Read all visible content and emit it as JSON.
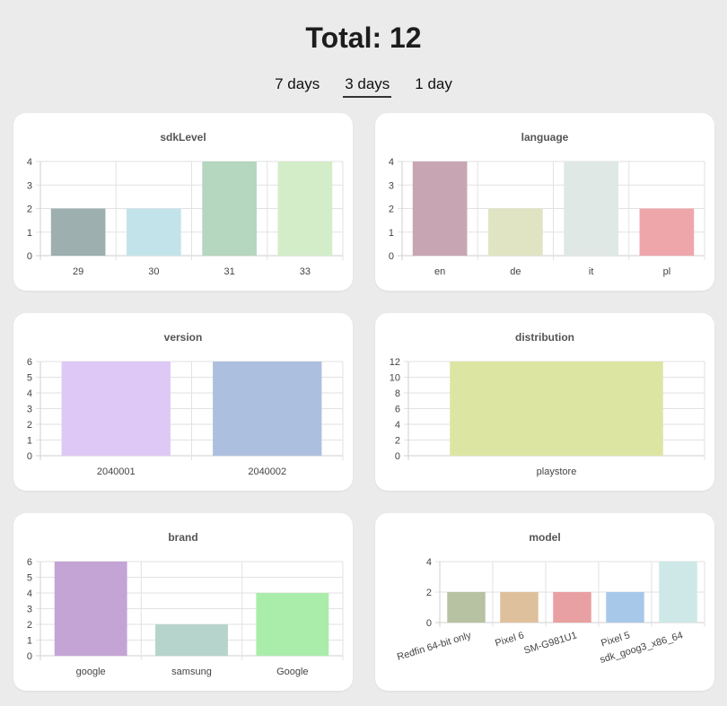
{
  "header": {
    "title": "Total: 12",
    "tabs": [
      {
        "label": "7 days",
        "active": false
      },
      {
        "label": "3 days",
        "active": true
      },
      {
        "label": "1 day",
        "active": false
      }
    ]
  },
  "chart_data": [
    {
      "id": "sdkLevel",
      "type": "bar",
      "title": "sdkLevel",
      "categories": [
        "29",
        "30",
        "31",
        "33"
      ],
      "values": [
        2,
        2,
        4,
        4
      ],
      "ylim": [
        0,
        4
      ],
      "yticks": [
        0,
        1,
        2,
        3,
        4
      ],
      "colors": [
        "#9dafaf",
        "#c3e3ea",
        "#b5d6bf",
        "#d3edc8"
      ]
    },
    {
      "id": "language",
      "type": "bar",
      "title": "language",
      "categories": [
        "en",
        "de",
        "it",
        "pl"
      ],
      "values": [
        4,
        2,
        4,
        2
      ],
      "ylim": [
        0,
        4
      ],
      "yticks": [
        0,
        1,
        2,
        3,
        4
      ],
      "colors": [
        "#c8a5b3",
        "#e0e4c3",
        "#dfe8e4",
        "#efa6aa"
      ]
    },
    {
      "id": "version",
      "type": "bar",
      "title": "version",
      "categories": [
        "2040001",
        "2040002"
      ],
      "values": [
        6,
        6
      ],
      "ylim": [
        0,
        6
      ],
      "yticks": [
        0,
        1,
        2,
        3,
        4,
        5,
        6
      ],
      "colors": [
        "#dec8f5",
        "#adbfdf"
      ]
    },
    {
      "id": "distribution",
      "type": "bar",
      "title": "distribution",
      "categories": [
        "playstore"
      ],
      "values": [
        12
      ],
      "ylim": [
        0,
        12
      ],
      "yticks": [
        0,
        2,
        4,
        6,
        8,
        10,
        12
      ],
      "colors": [
        "#dde5a3"
      ]
    },
    {
      "id": "brand",
      "type": "bar",
      "title": "brand",
      "categories": [
        "google",
        "samsung",
        "Google"
      ],
      "values": [
        6,
        2,
        4
      ],
      "ylim": [
        0,
        6
      ],
      "yticks": [
        0,
        1,
        2,
        3,
        4,
        5,
        6
      ],
      "colors": [
        "#c4a4d4",
        "#b6d3cc",
        "#aaedab"
      ]
    },
    {
      "id": "model",
      "type": "bar",
      "title": "model",
      "categories": [
        "Redfin 64-bit only",
        "Pixel 6",
        "SM-G981U1",
        "Pixel 5",
        "sdk_goog3_x86_64"
      ],
      "values": [
        2,
        2,
        2,
        2,
        4
      ],
      "ylim": [
        0,
        4
      ],
      "yticks": [
        0,
        2,
        4
      ],
      "colors": [
        "#b7c2a2",
        "#dfc09c",
        "#e9a0a2",
        "#a8c8ea",
        "#cde8e7"
      ]
    }
  ]
}
